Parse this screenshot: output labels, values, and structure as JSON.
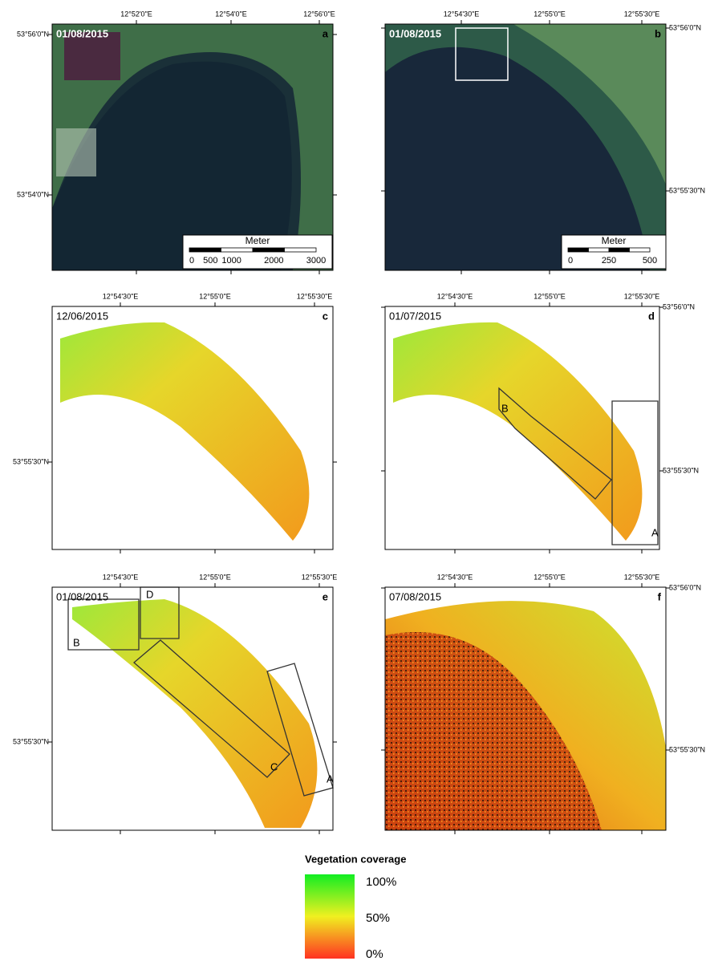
{
  "panels": [
    {
      "date": "01/08/2015",
      "letter": "a",
      "x_labels": [
        "12°52'0\"E",
        "12°54'0\"E",
        "12°56'0\"E"
      ],
      "y_labels": [
        "53°56'0\"N",
        "53°54'0\"N"
      ],
      "scale_bar": {
        "title": "Meter",
        "labels": [
          "0",
          "500",
          "1000",
          "2000",
          "3000"
        ]
      }
    },
    {
      "date": "01/08/2015",
      "letter": "b",
      "x_labels": [
        "12°54'30\"E",
        "12°55'0\"E",
        "12°55'30\"E"
      ],
      "y_labels": [
        "53°56'0\"N",
        "53°55'30\"N"
      ],
      "scale_bar": {
        "title": "Meter",
        "labels": [
          "0",
          "250",
          "500"
        ]
      }
    },
    {
      "date": "12/06/2015",
      "letter": "c",
      "x_labels": [
        "12°54'30\"E",
        "12°55'0\"E",
        "12°55'30\"E"
      ],
      "y_labels": [
        "53°55'30\"N"
      ]
    },
    {
      "date": "01/07/2015",
      "letter": "d",
      "x_labels": [
        "12°54'30\"E",
        "12°55'0\"E",
        "12°55'30\"E"
      ],
      "y_labels": [
        "53°56'0\"N",
        "53°55'30\"N"
      ],
      "boxes": [
        "B",
        "A"
      ]
    },
    {
      "date": "01/08/2015",
      "letter": "e",
      "x_labels": [
        "12°54'30\"E",
        "12°55'0\"E",
        "12°55'30\"E"
      ],
      "y_labels": [
        "53°55'30\"N"
      ],
      "boxes": [
        "B",
        "D",
        "C",
        "A"
      ]
    },
    {
      "date": "07/08/2015",
      "letter": "f",
      "x_labels": [
        "12°54'30\"E",
        "12°55'0\"E",
        "12°55'30\"E"
      ],
      "y_labels": [
        "53°56'0\"N",
        "53°55'30\"N"
      ]
    }
  ],
  "legend": {
    "title": "Vegetation coverage",
    "labels": [
      "100%",
      "50%",
      "0%"
    ]
  }
}
